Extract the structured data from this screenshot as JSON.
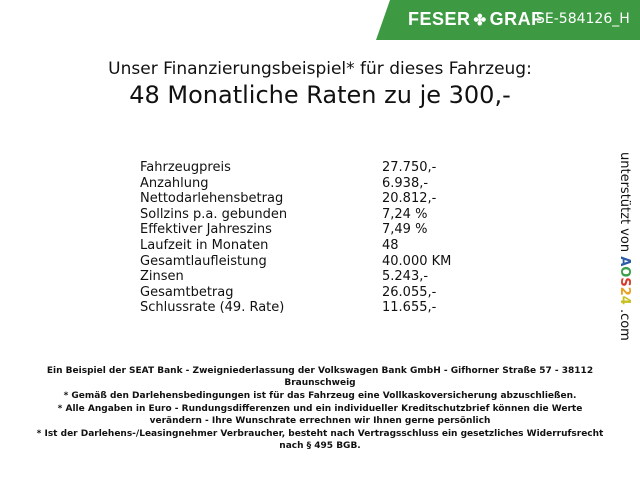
{
  "header": {
    "brand_left": "FESER",
    "brand_right": "GRAF",
    "vehicle_code": "SE-584126_H",
    "brand_color": "#3d9a42"
  },
  "title": {
    "line1": "Unser Finanzierungsbeispiel* für dieses Fahrzeug:",
    "line2": "48 Monatliche Raten zu je 300,-"
  },
  "finance": [
    {
      "label": "Fahrzeugpreis",
      "value": "27.750,-"
    },
    {
      "label": "Anzahlung",
      "value": "6.938,-"
    },
    {
      "label": "Nettodarlehensbetrag",
      "value": "20.812,-"
    },
    {
      "label": "Sollzins p.a. gebunden",
      "value": "7,24 %"
    },
    {
      "label": "Effektiver Jahreszins",
      "value": "7,49 %"
    },
    {
      "label": "Laufzeit in Monaten",
      "value": "48"
    },
    {
      "label": "Gesamtlaufleistung",
      "value": "40.000 KM"
    },
    {
      "label": "Zinsen",
      "value": "5.243,-"
    },
    {
      "label": "Gesamtbetrag",
      "value": "26.055,-"
    },
    {
      "label": "Schlussrate (49. Rate)",
      "value": "11.655,-"
    }
  ],
  "side": {
    "prefix": "unterstützt von",
    "logo": [
      "A",
      "O",
      "S",
      "2",
      "4"
    ],
    "suffix": ".com"
  },
  "footer": [
    "Ein Beispiel der SEAT Bank - Zweigniederlassung der Volkswagen Bank GmbH - Gifhorner Straße 57 - 38112 Braunschweig",
    "* Gemäß den Darlehensbedingungen ist für das Fahrzeug eine Vollkaskoversicherung abzuschließen.",
    "* Alle Angaben in Euro - Rundungsdifferenzen und ein individueller Kreditschutzbrief können die Werte verändern - Ihre Wunschrate errechnen wir Ihnen gerne persönlich",
    "* Ist der Darlehens-/Leasingnehmer Verbraucher, besteht nach Vertragsschluss ein gesetzliches Widerrufsrecht nach § 495 BGB."
  ]
}
